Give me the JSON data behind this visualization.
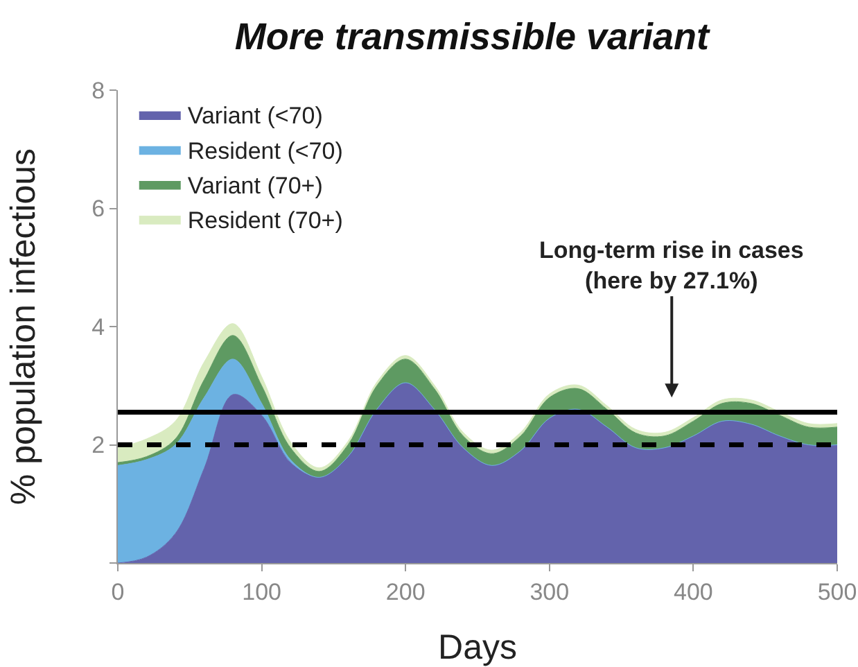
{
  "chart_data": {
    "type": "area",
    "title": "More transmissible variant",
    "xlabel": "Days",
    "ylabel": "% population infectious",
    "x": [
      0,
      20,
      40,
      60,
      80,
      100,
      120,
      140,
      160,
      180,
      200,
      220,
      240,
      260,
      280,
      300,
      320,
      340,
      360,
      380,
      400,
      420,
      440,
      460,
      480,
      500
    ],
    "stacked": true,
    "series": [
      {
        "name": "Variant (<70)",
        "color": "#6363ac",
        "values": [
          0,
          0.1,
          0.5,
          1.6,
          2.85,
          2.5,
          1.7,
          1.45,
          1.8,
          2.6,
          3.05,
          2.6,
          1.95,
          1.65,
          1.9,
          2.45,
          2.6,
          2.3,
          1.95,
          1.95,
          2.15,
          2.4,
          2.35,
          2.15,
          2.0,
          2.0
        ]
      },
      {
        "name": "Resident (<70)",
        "color": "#6cb2e2",
        "values": [
          1.65,
          1.65,
          1.5,
          1.2,
          0.6,
          0.2,
          0.05,
          0,
          0,
          0,
          0,
          0,
          0,
          0,
          0,
          0,
          0,
          0,
          0,
          0,
          0,
          0,
          0,
          0,
          0,
          0
        ]
      },
      {
        "name": "Variant (70+)",
        "color": "#5e9a62",
        "values": [
          0.05,
          0.05,
          0.1,
          0.3,
          0.4,
          0.3,
          0.2,
          0.1,
          0.2,
          0.4,
          0.4,
          0.35,
          0.2,
          0.2,
          0.25,
          0.35,
          0.35,
          0.3,
          0.25,
          0.2,
          0.25,
          0.3,
          0.35,
          0.35,
          0.3,
          0.3
        ]
      },
      {
        "name": "Resident (70+)",
        "color": "#d9ebc0",
        "values": [
          0.25,
          0.3,
          0.3,
          0.3,
          0.2,
          0.15,
          0.1,
          0.06,
          0.06,
          0.06,
          0.06,
          0.06,
          0.06,
          0.06,
          0.06,
          0.06,
          0.06,
          0.06,
          0.06,
          0.06,
          0.06,
          0.06,
          0.06,
          0.06,
          0.06,
          0.06
        ]
      }
    ],
    "xlim": [
      0,
      500
    ],
    "xticks": [
      0,
      100,
      200,
      300,
      400,
      500
    ],
    "ylim": [
      0,
      8
    ],
    "yticks": [
      {
        "value": 0,
        "label": null
      },
      2,
      4,
      6,
      8
    ],
    "ref_lines": [
      {
        "axis": "y",
        "value": 2.55,
        "line_style": "solid",
        "color": "#000000"
      },
      {
        "axis": "y",
        "value": 2.0,
        "line_style": "dashed",
        "color": "#000000"
      }
    ],
    "annotations": [
      "Long-term rise in cases\n(here by 27.1%)"
    ],
    "legend": "top left",
    "grid": false
  }
}
